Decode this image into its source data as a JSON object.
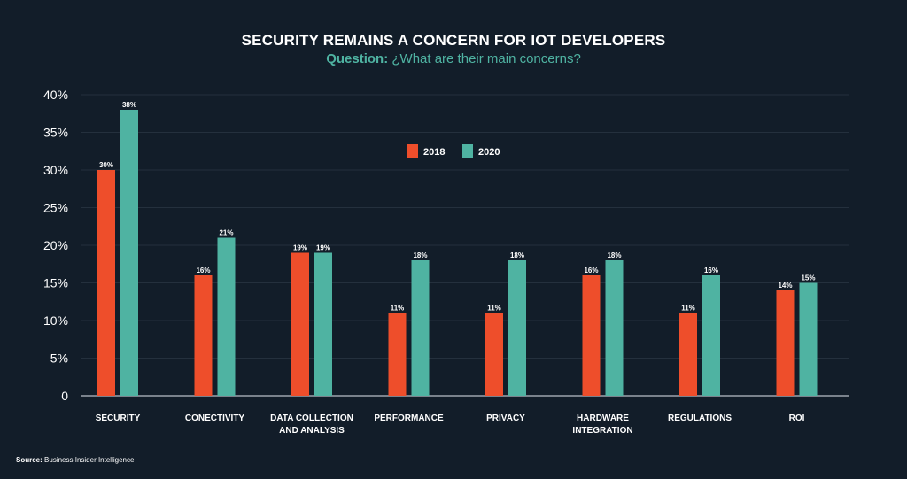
{
  "chart_data": {
    "type": "bar",
    "title": "SECURITY REMAINS A CONCERN FOR IOT DEVELOPERS",
    "subtitle_prefix": "Question:",
    "subtitle_text": "¿What are their main concerns?",
    "categories": [
      [
        "SECURITY"
      ],
      [
        "CONECTIVITY"
      ],
      [
        "DATA COLLECTION",
        "AND ANALYSIS"
      ],
      [
        "PERFORMANCE"
      ],
      [
        "PRIVACY"
      ],
      [
        "HARDWARE",
        "INTEGRATION"
      ],
      [
        "REGULATIONS"
      ],
      [
        "ROI"
      ]
    ],
    "series": [
      {
        "name": "2018",
        "color": "#ee4e2b",
        "values": [
          30,
          16,
          19,
          11,
          11,
          16,
          11,
          14
        ]
      },
      {
        "name": "2020",
        "color": "#4fb3a2",
        "values": [
          38,
          21,
          19,
          18,
          18,
          18,
          16,
          15
        ]
      }
    ],
    "data_labels": [
      [
        "30%",
        "16%",
        "19%",
        "11%",
        "11%",
        "16%",
        "11%",
        "14%"
      ],
      [
        "38%",
        "21%",
        "19%",
        "18%",
        "18%",
        "18%",
        "16%",
        "15%"
      ]
    ],
    "yticks": [
      {
        "value": 0,
        "label": "0"
      },
      {
        "value": 5,
        "label": "5%"
      },
      {
        "value": 10,
        "label": "10%"
      },
      {
        "value": 15,
        "label": "15%"
      },
      {
        "value": 20,
        "label": "20%"
      },
      {
        "value": 25,
        "label": "25%"
      },
      {
        "value": 30,
        "label": "30%"
      },
      {
        "value": 35,
        "label": "35%"
      },
      {
        "value": 40,
        "label": "40%"
      }
    ],
    "ylim": [
      0,
      40
    ],
    "xlabel": "",
    "ylabel": "",
    "grid": true,
    "legend_position": "top-center"
  },
  "source": {
    "label": "Source:",
    "text": "Business Insider Intelligence"
  }
}
